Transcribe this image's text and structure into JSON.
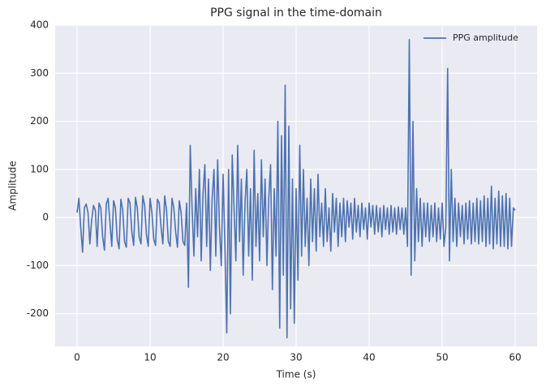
{
  "chart_data": {
    "type": "line",
    "title": "PPG signal in the time-domain",
    "x_label": "Time (s)",
    "y_label": "Amplitude",
    "x": [
      0,
      0.25,
      0.5,
      0.75,
      1,
      1.25,
      1.5,
      1.75,
      2,
      2.25,
      2.5,
      2.75,
      3,
      3.25,
      3.5,
      3.75,
      4,
      4.25,
      4.5,
      4.75,
      5,
      5.25,
      5.5,
      5.75,
      6,
      6.25,
      6.5,
      6.75,
      7,
      7.25,
      7.5,
      7.75,
      8,
      8.25,
      8.5,
      8.75,
      9,
      9.25,
      9.5,
      9.75,
      10,
      10.25,
      10.5,
      10.75,
      11,
      11.25,
      11.5,
      11.75,
      12,
      12.25,
      12.5,
      12.75,
      13,
      13.25,
      13.5,
      13.75,
      14,
      14.25,
      14.5,
      14.75,
      15,
      15.25,
      15.5,
      15.75,
      16,
      16.25,
      16.5,
      16.75,
      17,
      17.25,
      17.5,
      17.75,
      18,
      18.25,
      18.5,
      18.75,
      19,
      19.25,
      19.5,
      19.75,
      20,
      20.25,
      20.5,
      20.75,
      21,
      21.25,
      21.5,
      21.75,
      22,
      22.25,
      22.5,
      22.75,
      23,
      23.25,
      23.5,
      23.75,
      24,
      24.25,
      24.5,
      24.75,
      25,
      25.25,
      25.5,
      25.75,
      26,
      26.25,
      26.5,
      26.75,
      27,
      27.25,
      27.5,
      27.75,
      28,
      28.25,
      28.5,
      28.75,
      29,
      29.25,
      29.5,
      29.75,
      30,
      30.25,
      30.5,
      30.75,
      31,
      31.25,
      31.5,
      31.75,
      32,
      32.25,
      32.5,
      32.75,
      33,
      33.25,
      33.5,
      33.75,
      34,
      34.25,
      34.5,
      34.75,
      35,
      35.25,
      35.5,
      35.75,
      36,
      36.25,
      36.5,
      36.75,
      37,
      37.25,
      37.5,
      37.75,
      38,
      38.25,
      38.5,
      38.75,
      39,
      39.25,
      39.5,
      39.75,
      40,
      40.25,
      40.5,
      40.75,
      41,
      41.25,
      41.5,
      41.75,
      42,
      42.25,
      42.5,
      42.75,
      43,
      43.25,
      43.5,
      43.75,
      44,
      44.25,
      44.5,
      44.75,
      45,
      45.25,
      45.5,
      45.75,
      46,
      46.25,
      46.5,
      46.75,
      47,
      47.25,
      47.5,
      47.75,
      48,
      48.25,
      48.5,
      48.75,
      49,
      49.25,
      49.5,
      49.75,
      50,
      50.25,
      50.5,
      50.75,
      51,
      51.25,
      51.5,
      51.75,
      52,
      52.25,
      52.5,
      52.75,
      53,
      53.25,
      53.5,
      53.75,
      54,
      54.25,
      54.5,
      54.75,
      55,
      55.25,
      55.5,
      55.75,
      56,
      56.25,
      56.5,
      56.75,
      57,
      57.25,
      57.5,
      57.75,
      58,
      58.25,
      58.5,
      58.75,
      59,
      59.25,
      59.5,
      59.75,
      60
    ],
    "series": [
      {
        "name": "PPG amplitude",
        "color": "#4c72b0",
        "values": [
          10,
          40,
          -20,
          -72,
          20,
          28,
          10,
          -55,
          -5,
          25,
          15,
          -60,
          30,
          20,
          -40,
          -68,
          28,
          40,
          -10,
          -60,
          35,
          20,
          -45,
          -65,
          38,
          15,
          -50,
          -62,
          40,
          30,
          -30,
          -58,
          42,
          20,
          -40,
          -55,
          45,
          25,
          -35,
          -60,
          40,
          10,
          -45,
          -58,
          38,
          30,
          -20,
          -55,
          45,
          15,
          -50,
          -60,
          40,
          20,
          -30,
          -62,
          35,
          10,
          -50,
          -58,
          30,
          -145,
          150,
          20,
          -80,
          60,
          -40,
          100,
          -90,
          50,
          110,
          -60,
          80,
          -110,
          40,
          100,
          -80,
          120,
          -20,
          -100,
          90,
          -60,
          -240,
          100,
          -200,
          130,
          20,
          -90,
          150,
          -50,
          80,
          -120,
          30,
          100,
          -80,
          60,
          -130,
          140,
          -60,
          50,
          -90,
          120,
          -40,
          80,
          -100,
          40,
          110,
          -150,
          60,
          -80,
          200,
          -230,
          170,
          -120,
          275,
          -250,
          190,
          -190,
          80,
          -220,
          60,
          -130,
          150,
          -80,
          100,
          -60,
          40,
          -100,
          80,
          -50,
          60,
          -70,
          90,
          -40,
          30,
          -60,
          60,
          -50,
          20,
          -70,
          50,
          -30,
          40,
          -60,
          30,
          -40,
          40,
          -50,
          35,
          -20,
          30,
          -45,
          40,
          -30,
          25,
          -40,
          30,
          -25,
          20,
          -45,
          30,
          -20,
          25,
          -35,
          25,
          -30,
          20,
          -40,
          25,
          -25,
          20,
          -35,
          25,
          -30,
          20,
          -35,
          22,
          -25,
          20,
          -35,
          20,
          -60,
          370,
          -120,
          200,
          -90,
          60,
          -50,
          40,
          -60,
          30,
          -40,
          30,
          -50,
          25,
          -40,
          30,
          -50,
          20,
          -45,
          30,
          -60,
          -20,
          310,
          -90,
          100,
          -50,
          40,
          -60,
          30,
          -40,
          25,
          -55,
          30,
          -45,
          35,
          -55,
          30,
          -50,
          40,
          -55,
          35,
          -50,
          45,
          -60,
          40,
          -55,
          65,
          -65,
          40,
          -55,
          55,
          -60,
          45,
          -60,
          50,
          -65,
          40,
          -60,
          20,
          15
        ]
      }
    ],
    "xlim": [
      -3,
      63
    ],
    "ylim": [
      -268,
      400
    ],
    "xticks": [
      0,
      10,
      20,
      30,
      40,
      50,
      60
    ],
    "yticks": [
      -200,
      -100,
      0,
      100,
      200,
      300,
      400
    ],
    "grid": true,
    "legend": "upper right"
  }
}
